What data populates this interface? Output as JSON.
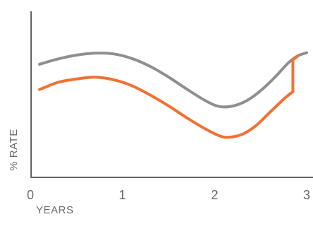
{
  "chart_data": {
    "type": "line",
    "xlabel": "YEARS",
    "ylabel": "% RATE",
    "xlim": [
      0,
      3
    ],
    "ylim": [
      0,
      10
    ],
    "x_ticks": [
      "0",
      "1",
      "2",
      "3"
    ],
    "grid": false,
    "series": [
      {
        "color": "#8f8f91",
        "points": [
          [
            0.1,
            6.83
          ],
          [
            0.3,
            7.15
          ],
          [
            0.5,
            7.38
          ],
          [
            0.7,
            7.5
          ],
          [
            0.9,
            7.46
          ],
          [
            1.1,
            7.18
          ],
          [
            1.3,
            6.7
          ],
          [
            1.5,
            6.05
          ],
          [
            1.7,
            5.31
          ],
          [
            1.9,
            4.62
          ],
          [
            2.05,
            4.26
          ],
          [
            2.2,
            4.29
          ],
          [
            2.35,
            4.62
          ],
          [
            2.5,
            5.22
          ],
          [
            2.65,
            6.01
          ],
          [
            2.8,
            6.9
          ],
          [
            2.9,
            7.33
          ],
          [
            3.0,
            7.53
          ]
        ]
      },
      {
        "color": "#f07133",
        "points": [
          [
            0.1,
            5.29
          ],
          [
            0.3,
            5.73
          ],
          [
            0.5,
            5.93
          ],
          [
            0.7,
            6.04
          ],
          [
            0.9,
            5.89
          ],
          [
            1.1,
            5.53
          ],
          [
            1.3,
            4.96
          ],
          [
            1.5,
            4.3
          ],
          [
            1.7,
            3.57
          ],
          [
            1.9,
            2.9
          ],
          [
            2.05,
            2.49
          ],
          [
            2.15,
            2.39
          ],
          [
            2.3,
            2.57
          ],
          [
            2.45,
            3.1
          ],
          [
            2.6,
            3.9
          ],
          [
            2.75,
            4.7
          ],
          [
            2.85,
            5.16
          ],
          [
            2.85,
            7.09
          ],
          [
            2.9,
            7.31
          ]
        ]
      }
    ]
  }
}
